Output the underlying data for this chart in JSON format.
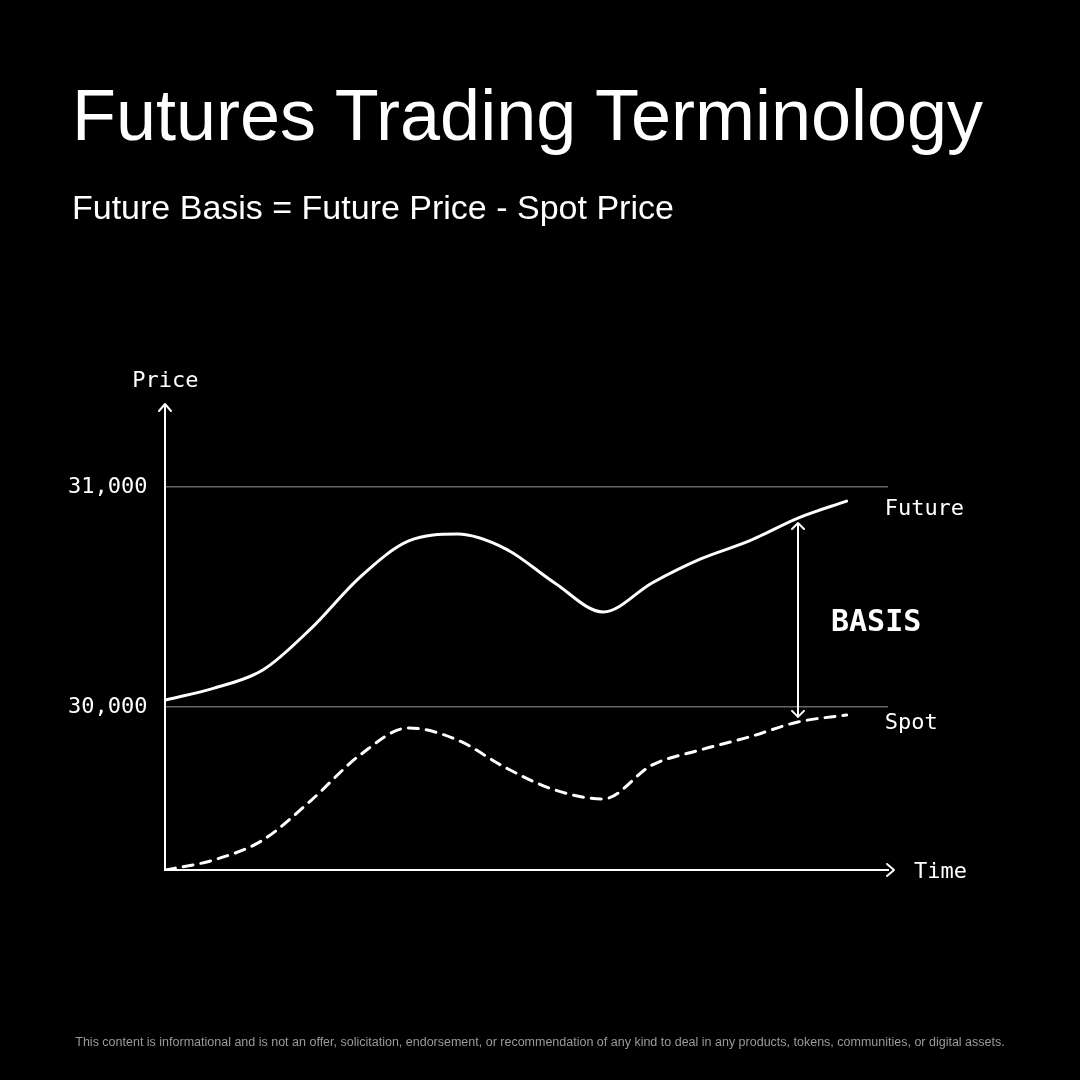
{
  "chart_data": {
    "type": "line",
    "title": "Futures Trading Terminology",
    "subtitle": "Future Basis = Future Price - Spot Price",
    "xlabel": "Time",
    "ylabel": "Price",
    "categories": [
      null,
      null,
      null,
      null,
      null,
      null,
      null,
      null,
      null,
      null,
      null,
      null,
      null,
      null,
      null
    ],
    "series": [
      {
        "name": "Future",
        "color": "#ffffff",
        "line_style": "solid",
        "values": [
          30032,
          30086,
          30168,
          30359,
          30591,
          30755,
          30786,
          30718,
          30564,
          30432,
          30564,
          30673,
          30755,
          30859,
          30936
        ]
      },
      {
        "name": "Spot",
        "color": "#ffffff",
        "line_style": "dashed",
        "values": [
          29259,
          29305,
          29395,
          29577,
          29782,
          29905,
          29850,
          29723,
          29623,
          29582,
          29736,
          29805,
          29864,
          29932,
          29964
        ]
      }
    ],
    "ylim": [
      29259,
      31373
    ],
    "yticks": [
      {
        "value": 30000,
        "label": "30,000"
      },
      {
        "value": 31000,
        "label": "31,000"
      }
    ],
    "grid": "y",
    "tick_labels": "y",
    "legend": false,
    "marker": "none",
    "annotations": [
      "BASIS",
      "This content is informational and is not an offer, solicitation, endorsement, or recommendation of any kind to deal in any products, tokens, communities, or digital assets."
    ]
  }
}
